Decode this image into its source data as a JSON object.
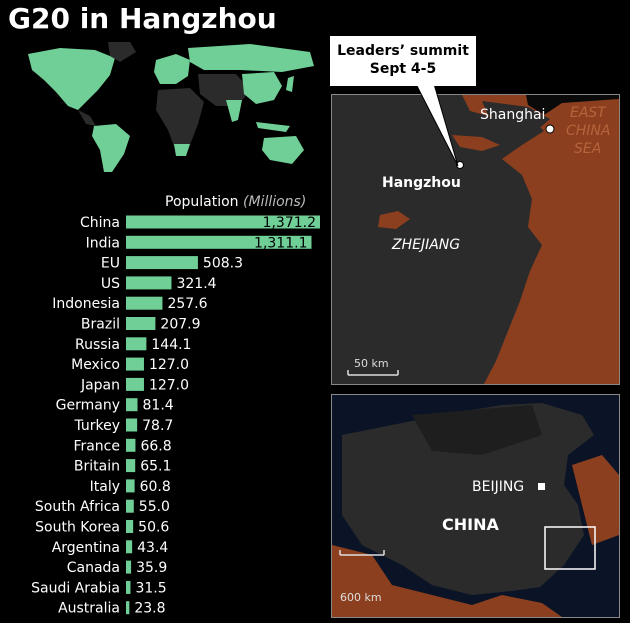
{
  "title": "G20 in Hangzhou",
  "colors": {
    "bar": "#6fcf97",
    "land_foreign": "#8c3f1e",
    "land_china": "#2b2b2b",
    "background": "#000000"
  },
  "callout": {
    "line1": "Leaders’ summit",
    "line2": "Sept 4-5"
  },
  "detail_map": {
    "labels": {
      "shanghai": "Shanghai",
      "hangzhou": "Hangzhou",
      "zhejiang": "ZHEJIANG",
      "sea_line1": "EAST",
      "sea_line2": "CHINA",
      "sea_line3": "SEA"
    },
    "scale": "50 km"
  },
  "overview_map": {
    "labels": {
      "beijing": "BEIJING",
      "china": "CHINA"
    },
    "scale": "600 km"
  },
  "chart_data": {
    "type": "bar",
    "orientation": "horizontal",
    "title": "Population",
    "unit": "(Millions)",
    "categories": [
      "China",
      "India",
      "EU",
      "US",
      "Indonesia",
      "Brazil",
      "Russia",
      "Mexico",
      "Japan",
      "Germany",
      "Turkey",
      "France",
      "Britain",
      "Italy",
      "South Africa",
      "South Korea",
      "Argentina",
      "Canada",
      "Saudi Arabia",
      "Australia"
    ],
    "values": [
      1371.2,
      1311.1,
      508.3,
      321.4,
      257.6,
      207.9,
      144.1,
      127.0,
      127.0,
      81.4,
      78.7,
      66.8,
      65.1,
      60.8,
      55.0,
      50.6,
      43.4,
      35.9,
      31.5,
      23.8
    ],
    "value_labels": [
      "1,371.2",
      "1,311.1",
      "508.3",
      "321.4",
      "257.6",
      "207.9",
      "144.1",
      "127.0",
      "127.0",
      "81.4",
      "78.7",
      "66.8",
      "65.1",
      "60.8",
      "55.0",
      "50.6",
      "43.4",
      "35.9",
      "31.5",
      "23.8"
    ],
    "xlim": [
      0,
      1371.2
    ]
  }
}
